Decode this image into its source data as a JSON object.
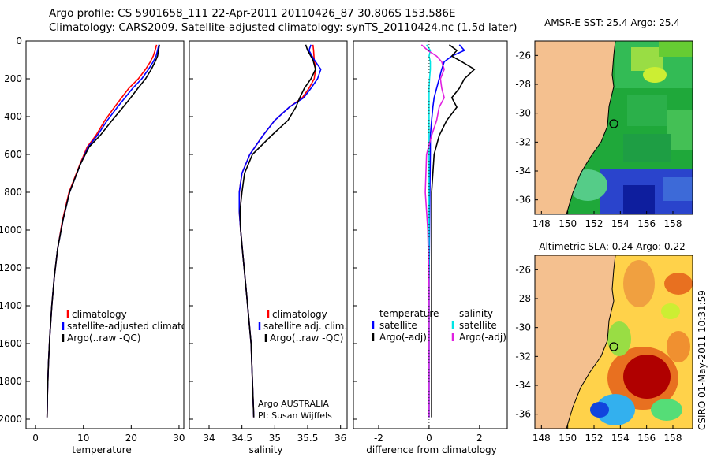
{
  "header": {
    "line1": "Argo profile: CS 5901658_111 22-Apr-2011 20110426_87 30.806S 153.586E",
    "line2": "Climatology: CARS2009. Satellite-adjusted climatology: synTS_20110424.nc (1.5d later)"
  },
  "side_label": "CSIRO 01-May-2011 10:31:59",
  "chart_data": [
    {
      "id": "temperature",
      "type": "line",
      "xlabel": "temperature",
      "ylabel": "",
      "xlim": [
        -2,
        31
      ],
      "ylim": [
        2050,
        0
      ],
      "xticks": [
        0,
        10,
        20,
        30
      ],
      "yticks": [
        0,
        200,
        400,
        600,
        800,
        1000,
        1200,
        1400,
        1600,
        1800,
        2000
      ],
      "legend": [
        "climatology",
        "satellite-adjusted climatology",
        "Argo(..raw -QC)"
      ],
      "legend_placement": "lower-right",
      "series": [
        {
          "name": "climatology",
          "color": "#ff0000",
          "x": [
            25.3,
            25.0,
            24.6,
            24.0,
            23.0,
            21.5,
            19.5,
            18.0,
            16.5,
            14.5,
            12.6,
            10.8,
            9.3,
            7.0,
            5.6,
            4.6,
            3.9,
            3.4,
            3.0,
            2.7,
            2.5,
            2.4
          ],
          "y": [
            20,
            50,
            80,
            110,
            150,
            200,
            250,
            300,
            350,
            420,
            500,
            560,
            650,
            800,
            950,
            1100,
            1250,
            1400,
            1550,
            1700,
            1850,
            1990
          ]
        },
        {
          "name": "satellite-adjusted climatology",
          "color": "#0000ff",
          "x": [
            25.8,
            25.5,
            25.2,
            24.6,
            23.6,
            22.2,
            20.3,
            18.7,
            17.1,
            15.0,
            12.9,
            11.0,
            9.4,
            7.1,
            5.7,
            4.6,
            3.9,
            3.4,
            3.0,
            2.7,
            2.5,
            2.4
          ],
          "y": [
            20,
            50,
            80,
            110,
            150,
            200,
            250,
            300,
            350,
            420,
            500,
            560,
            650,
            800,
            950,
            1100,
            1250,
            1400,
            1550,
            1700,
            1850,
            1990
          ]
        },
        {
          "name": "Argo(..raw -QC)",
          "color": "#000000",
          "x": [
            25.9,
            25.7,
            25.5,
            25.0,
            24.2,
            23.0,
            21.4,
            19.9,
            18.3,
            16.0,
            13.5,
            11.2,
            9.4,
            7.1,
            5.7,
            4.6,
            3.9,
            3.4,
            3.0,
            2.7,
            2.5,
            2.4
          ],
          "y": [
            20,
            50,
            80,
            110,
            150,
            200,
            250,
            300,
            350,
            420,
            500,
            560,
            650,
            800,
            950,
            1100,
            1250,
            1400,
            1550,
            1700,
            1850,
            1990
          ]
        }
      ]
    },
    {
      "id": "salinity",
      "type": "line",
      "xlabel": "salinity",
      "ylabel": "",
      "xlim": [
        33.7,
        36.1
      ],
      "ylim": [
        2050,
        0
      ],
      "xticks": [
        34,
        34.5,
        35,
        35.5,
        36
      ],
      "xticklabels": [
        "34",
        "34.5",
        "35",
        "35.5",
        "36"
      ],
      "legend": [
        "climatology",
        "satellite adj. clim.",
        "Argo(..raw -QC)"
      ],
      "legend_placement": "lower-right",
      "annotation": [
        "Argo AUSTRALIA",
        "PI: Susan Wijffels"
      ],
      "series": [
        {
          "name": "climatology",
          "color": "#ff0000",
          "x": [
            35.58,
            35.59,
            35.6,
            35.62,
            35.6,
            35.52,
            35.42,
            35.22,
            35.0,
            34.82,
            34.62,
            34.5,
            34.46,
            34.46,
            34.48,
            34.52,
            34.56,
            34.6,
            34.64,
            34.66,
            34.68
          ],
          "y": [
            20,
            50,
            100,
            150,
            200,
            250,
            300,
            350,
            420,
            500,
            600,
            700,
            800,
            900,
            1000,
            1150,
            1300,
            1450,
            1600,
            1800,
            1990
          ]
        },
        {
          "name": "satellite adj. clim.",
          "color": "#0000ff",
          "x": [
            35.55,
            35.52,
            35.6,
            35.7,
            35.65,
            35.55,
            35.44,
            35.22,
            35.0,
            34.82,
            34.62,
            34.5,
            34.46,
            34.46,
            34.48,
            34.52,
            34.56,
            34.6,
            34.64,
            34.66,
            34.68
          ],
          "y": [
            20,
            50,
            100,
            150,
            200,
            250,
            300,
            350,
            420,
            500,
            600,
            700,
            800,
            900,
            1000,
            1150,
            1300,
            1450,
            1600,
            1800,
            1990
          ]
        },
        {
          "name": "Argo(..raw -QC)",
          "color": "#000000",
          "x": [
            35.47,
            35.5,
            35.58,
            35.62,
            35.55,
            35.45,
            35.38,
            35.32,
            35.2,
            34.95,
            34.66,
            34.54,
            34.5,
            34.47,
            34.48,
            34.52,
            34.56,
            34.6,
            34.64,
            34.66,
            34.68
          ],
          "y": [
            20,
            50,
            100,
            150,
            200,
            250,
            300,
            350,
            420,
            500,
            600,
            700,
            800,
            900,
            1000,
            1150,
            1300,
            1450,
            1600,
            1800,
            1990
          ]
        }
      ]
    },
    {
      "id": "difference",
      "type": "line",
      "xlabel": "difference from climatology",
      "ylabel": "",
      "xlim": [
        -3,
        3.1
      ],
      "ylim": [
        2050,
        0
      ],
      "xticks": [
        -2,
        0,
        2
      ],
      "legend_groups": [
        {
          "title": "temperature",
          "items": [
            "satellite",
            "Argo(-adj)"
          ]
        },
        {
          "title": "salinity",
          "items": [
            "satellite",
            "Argo(-adj)"
          ]
        }
      ],
      "legend_placement": "lower-center",
      "series": [
        {
          "name": "temperature satellite",
          "color": "#0000ff",
          "x": [
            1.2,
            1.4,
            0.9,
            0.6,
            0.5,
            0.4,
            0.3,
            0.2,
            0.15,
            0.1,
            0.05,
            0.05,
            0.03,
            0.02,
            0.0,
            0.0,
            0.0
          ],
          "y": [
            20,
            50,
            80,
            110,
            150,
            200,
            250,
            300,
            350,
            420,
            500,
            600,
            800,
            1000,
            1300,
            1600,
            1990
          ]
        },
        {
          "name": "temperature Argo(-adj)",
          "color": "#000000",
          "x": [
            0.8,
            1.1,
            0.9,
            1.3,
            1.8,
            1.4,
            1.2,
            0.9,
            1.1,
            0.7,
            0.4,
            0.2,
            0.1,
            0.1,
            0.1,
            0.1,
            0.1
          ],
          "y": [
            20,
            50,
            80,
            110,
            150,
            200,
            250,
            300,
            350,
            420,
            500,
            600,
            800,
            1000,
            1300,
            1600,
            1990
          ]
        },
        {
          "name": "salinity satellite",
          "color": "#00e5e5",
          "x": [
            -0.1,
            0.05,
            0.0,
            0.05,
            0.05,
            0.02,
            0.0,
            0.0,
            0.0,
            0.0,
            0.0,
            0.0,
            0.0,
            0.0,
            0.0,
            0.0,
            0.0
          ],
          "y": [
            20,
            50,
            80,
            110,
            150,
            200,
            250,
            300,
            350,
            420,
            500,
            600,
            800,
            1000,
            1300,
            1600,
            1990
          ]
        },
        {
          "name": "salinity Argo(-adj)",
          "color": "#e020e0",
          "x": [
            -0.3,
            -0.05,
            0.3,
            0.5,
            0.6,
            0.45,
            0.5,
            0.6,
            0.4,
            0.3,
            0.1,
            -0.1,
            -0.15,
            -0.05,
            0.0,
            0.0,
            0.0
          ],
          "y": [
            20,
            50,
            80,
            110,
            150,
            200,
            250,
            300,
            350,
            420,
            500,
            600,
            800,
            1000,
            1300,
            1600,
            1990
          ]
        }
      ]
    },
    {
      "id": "sst_map",
      "type": "heatmap",
      "title": "AMSR-E SST: 25.4 Argo: 25.4",
      "xlim": [
        147.5,
        159.5
      ],
      "ylim": [
        -37,
        -25
      ],
      "xticks": [
        148,
        150,
        152,
        154,
        156,
        158
      ],
      "yticks": [
        -26,
        -28,
        -30,
        -32,
        -34,
        -36
      ],
      "profile_location": [
        153.586,
        -30.806
      ],
      "colors": {
        "land": "#f4c08f",
        "warm": "#22aa22",
        "cool": "#1133cc"
      }
    },
    {
      "id": "sla_map",
      "type": "heatmap",
      "title": "Altimetric SLA: 0.24 Argo: 0.22",
      "xlim": [
        147.5,
        159.5
      ],
      "ylim": [
        -37,
        -25
      ],
      "xticks": [
        148,
        150,
        152,
        154,
        156,
        158
      ],
      "yticks": [
        -26,
        -28,
        -30,
        -32,
        -34,
        -36
      ],
      "profile_location": [
        153.586,
        -30.806
      ],
      "colors": {
        "land": "#f4c08f",
        "high": "#aa0000",
        "low": "#0044ff"
      }
    }
  ]
}
